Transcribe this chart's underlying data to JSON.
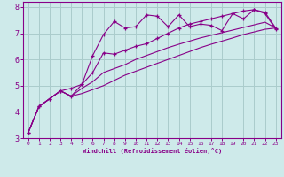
{
  "xlabel": "Windchill (Refroidissement éolien,°C)",
  "bg_color": "#ceeaea",
  "line_color": "#880088",
  "grid_color": "#aacccc",
  "xlim": [
    -0.5,
    23.5
  ],
  "ylim": [
    3,
    8.2
  ],
  "xticks": [
    0,
    1,
    2,
    3,
    4,
    5,
    6,
    7,
    8,
    9,
    10,
    11,
    12,
    13,
    14,
    15,
    16,
    17,
    18,
    19,
    20,
    21,
    22,
    23
  ],
  "yticks": [
    3,
    4,
    5,
    6,
    7,
    8
  ],
  "series": [
    [
      3.2,
      4.2,
      4.5,
      4.8,
      4.9,
      5.05,
      6.15,
      6.95,
      7.45,
      7.2,
      7.25,
      7.7,
      7.65,
      7.25,
      7.7,
      7.25,
      7.35,
      7.3,
      7.1,
      7.75,
      7.55,
      7.9,
      7.75,
      7.15
    ],
    [
      3.2,
      4.2,
      4.5,
      4.8,
      4.6,
      5.05,
      5.5,
      6.25,
      6.2,
      6.35,
      6.5,
      6.6,
      6.8,
      7.0,
      7.2,
      7.35,
      7.45,
      7.55,
      7.65,
      7.75,
      7.85,
      7.9,
      7.8,
      7.2
    ],
    [
      3.2,
      4.2,
      4.5,
      4.8,
      4.6,
      4.9,
      5.15,
      5.5,
      5.65,
      5.8,
      6.0,
      6.15,
      6.3,
      6.45,
      6.58,
      6.7,
      6.82,
      6.92,
      7.02,
      7.12,
      7.22,
      7.32,
      7.42,
      7.2
    ],
    [
      3.2,
      4.2,
      4.5,
      4.8,
      4.6,
      4.7,
      4.85,
      5.0,
      5.2,
      5.4,
      5.55,
      5.7,
      5.85,
      6.0,
      6.15,
      6.3,
      6.45,
      6.58,
      6.7,
      6.82,
      6.95,
      7.05,
      7.15,
      7.2
    ]
  ]
}
